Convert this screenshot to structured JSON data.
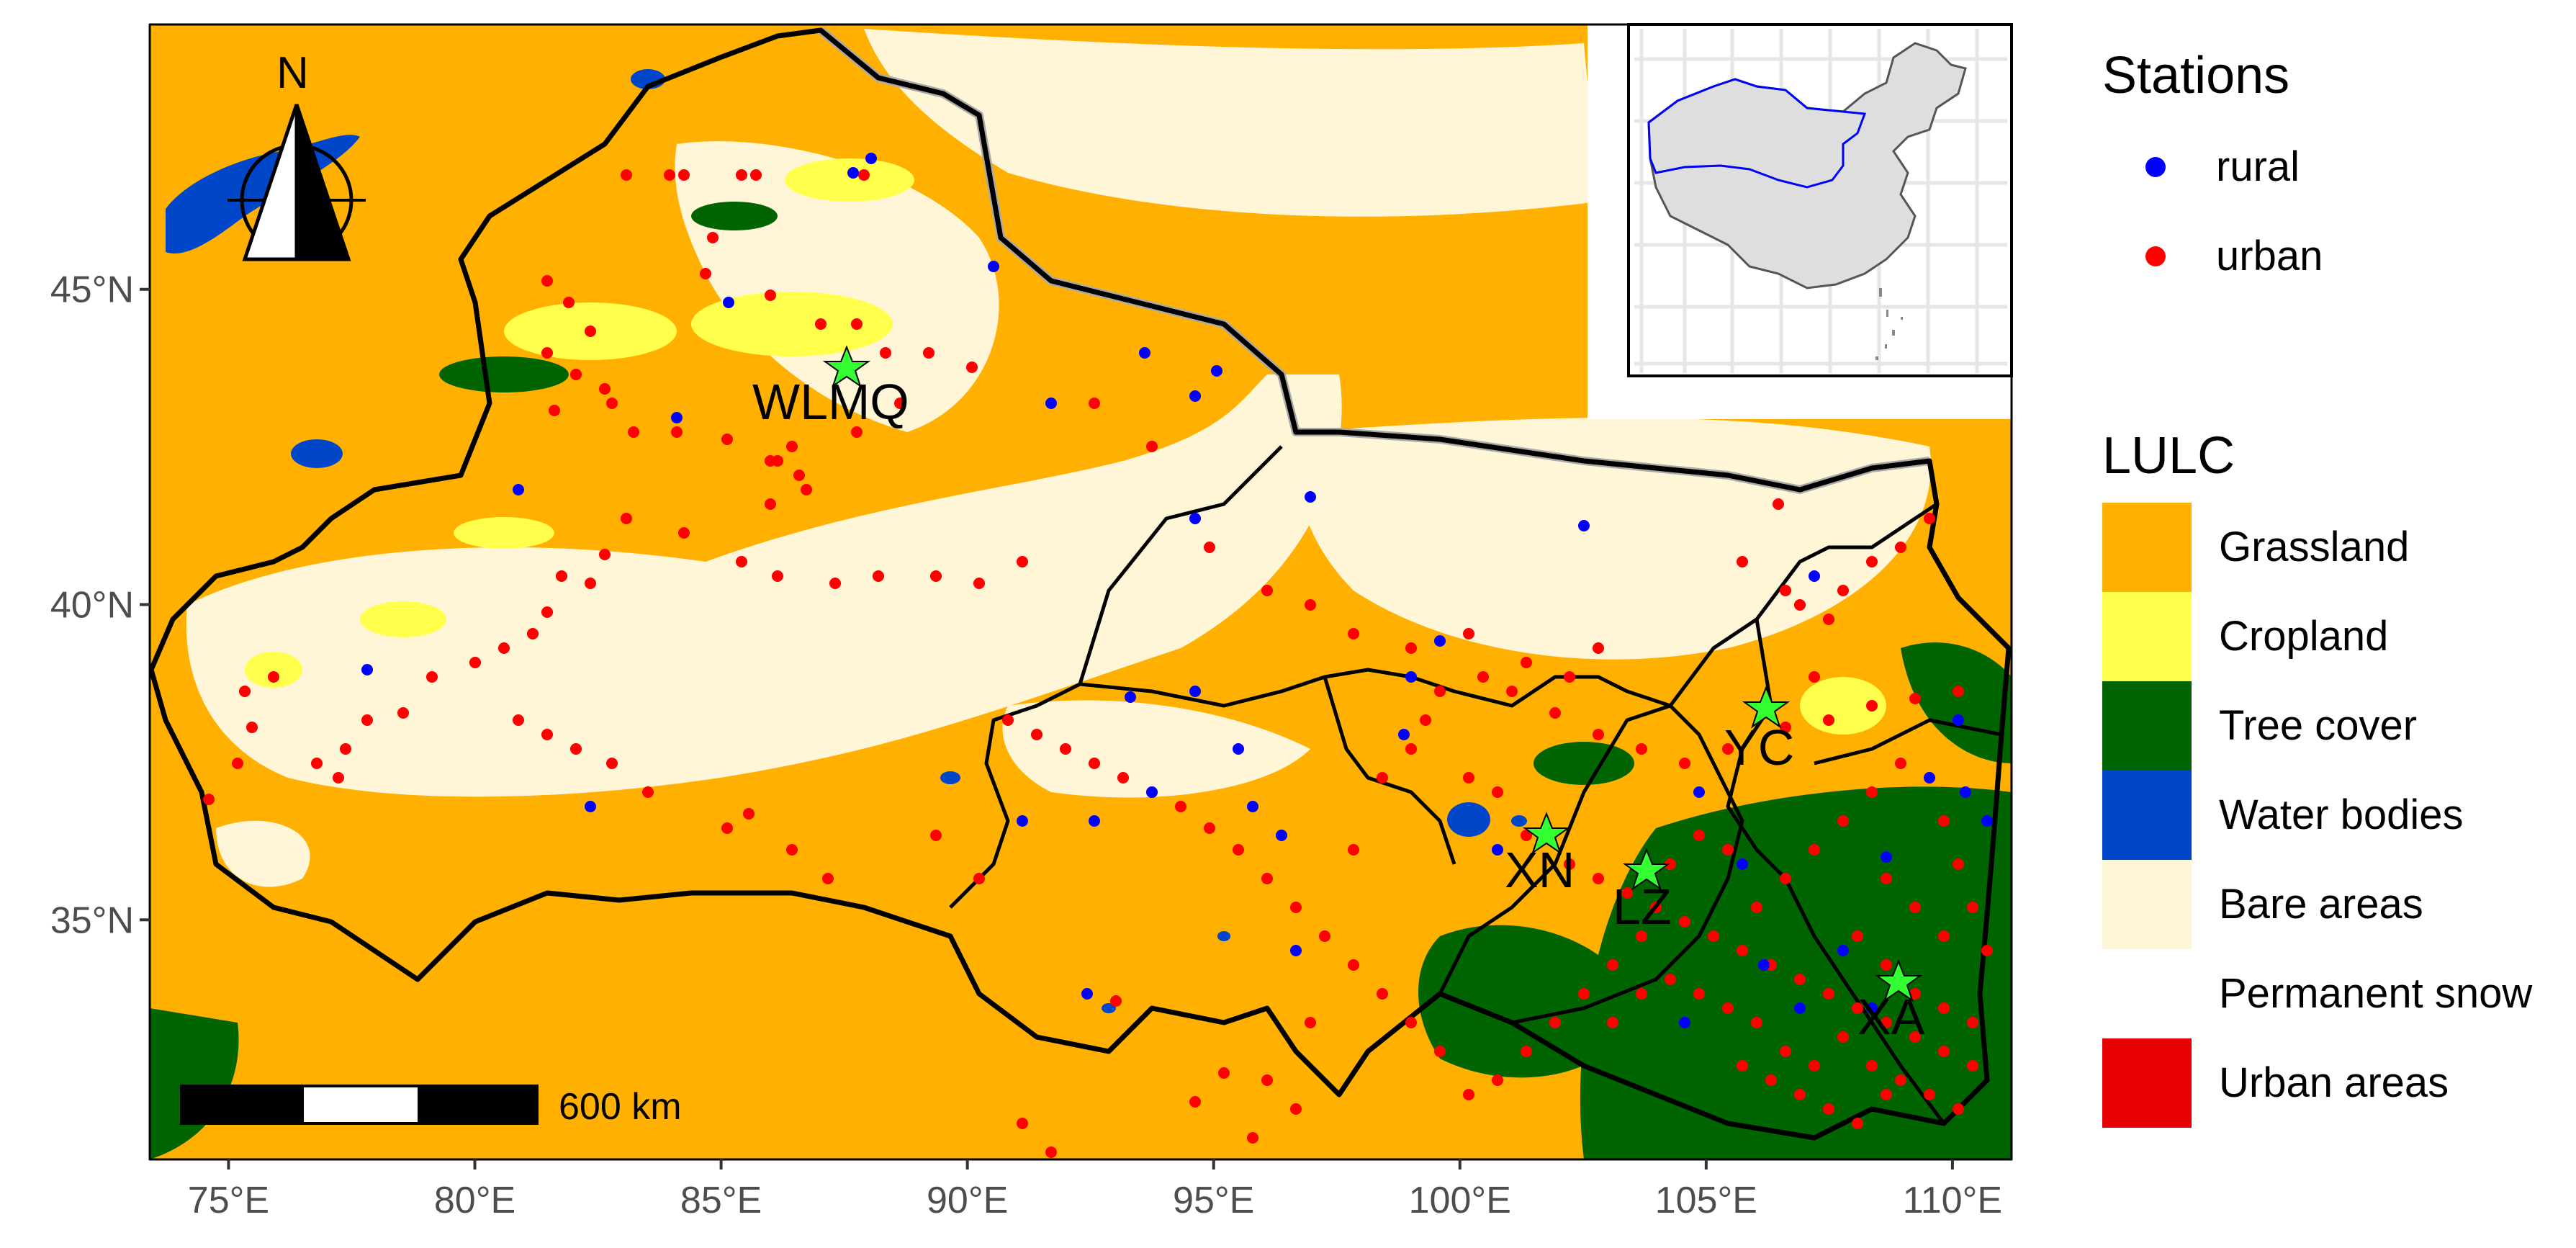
{
  "map": {
    "axes": {
      "x_ticks": [
        "75°E",
        "80°E",
        "85°E",
        "90°E",
        "95°E",
        "100°E",
        "105°E",
        "110°E"
      ],
      "x_tick_values": [
        75,
        80,
        85,
        90,
        95,
        100,
        105,
        110
      ],
      "y_ticks": [
        "45°N",
        "40°N",
        "35°N"
      ],
      "y_tick_values": [
        45,
        40,
        35
      ],
      "lon_range": [
        73.4,
        111.2
      ],
      "lat_range": [
        31.2,
        49.2
      ]
    },
    "north_arrow_label": "N",
    "scale_bar_label": "600 km",
    "station_labels": [
      "WLMQ",
      "XN",
      "LZ",
      "YC",
      "XA"
    ],
    "key_stations": [
      {
        "name": "WLMQ",
        "lon": 87.6,
        "lat": 43.8
      },
      {
        "name": "XN",
        "lon": 101.8,
        "lat": 36.6
      },
      {
        "name": "LZ",
        "lon": 103.9,
        "lat": 36.1
      },
      {
        "name": "YC",
        "lon": 106.3,
        "lat": 38.5
      },
      {
        "name": "XA",
        "lon": 108.9,
        "lat": 34.3
      }
    ]
  },
  "legend": {
    "stations_title": "Stations",
    "stations": [
      {
        "label": "rural",
        "color": "#0000ff"
      },
      {
        "label": "urban",
        "color": "#ff0000"
      }
    ],
    "lulc_title": "LULC",
    "lulc": [
      {
        "label": "Grassland",
        "color": "#ffb000"
      },
      {
        "label": "Cropland",
        "color": "#ffff4c"
      },
      {
        "label": "Tree cover",
        "color": "#006400"
      },
      {
        "label": "Water bodies",
        "color": "#0046c8"
      },
      {
        "label": "Bare areas",
        "color": "#fff5d7"
      },
      {
        "label": "Permanent snow",
        "color": "#ffffff"
      },
      {
        "label": "Urban areas",
        "color": "#e60000"
      }
    ]
  },
  "colors": {
    "star": "#33ff33",
    "boundary": "#000000",
    "inset_region": "#0000ff",
    "inset_country": "#e0e0e0"
  }
}
